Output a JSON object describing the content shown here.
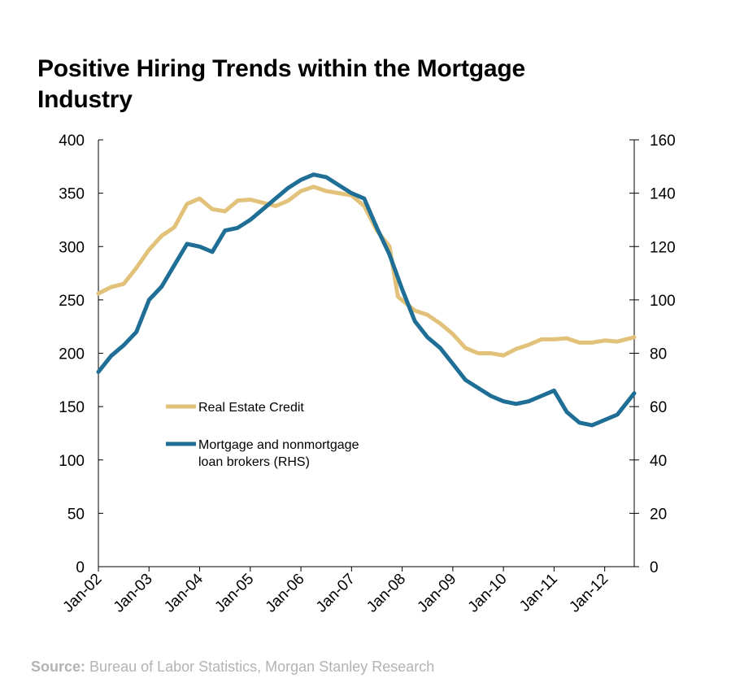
{
  "title": "Positive Hiring Trends within the Mortgage Industry",
  "source": {
    "label": "Source:",
    "text": "Bureau of Labor Statistics, Morgan Stanley Research"
  },
  "colors": {
    "real_estate": "#e2c27a",
    "brokers": "#1f6e96"
  },
  "chart_data": {
    "type": "line",
    "title": "Positive Hiring Trends within the Mortgage Industry",
    "x_ticks": [
      "Jan-02",
      "Jan-03",
      "Jan-04",
      "Jan-05",
      "Jan-06",
      "Jan-07",
      "Jan-08",
      "Jan-09",
      "Jan-10",
      "Jan-11",
      "Jan-12"
    ],
    "x_range": [
      "2002-01",
      "2012-08"
    ],
    "left_axis": {
      "ylim": [
        0,
        400
      ],
      "ticks": [
        0,
        50,
        100,
        150,
        200,
        250,
        300,
        350,
        400
      ]
    },
    "right_axis": {
      "ylim": [
        0,
        160
      ],
      "ticks": [
        0,
        20,
        40,
        60,
        80,
        100,
        120,
        140,
        160
      ]
    },
    "legend": {
      "placement": "lower-left"
    },
    "series": [
      {
        "name": "Real Estate Credit",
        "axis": "left",
        "color": "#e2c27a",
        "points": [
          [
            "2002-01",
            256
          ],
          [
            "2002-04",
            262
          ],
          [
            "2002-07",
            265
          ],
          [
            "2002-10",
            280
          ],
          [
            "2003-01",
            297
          ],
          [
            "2003-04",
            310
          ],
          [
            "2003-07",
            318
          ],
          [
            "2003-10",
            340
          ],
          [
            "2004-01",
            345
          ],
          [
            "2004-04",
            335
          ],
          [
            "2004-07",
            333
          ],
          [
            "2004-10",
            343
          ],
          [
            "2005-01",
            344
          ],
          [
            "2005-04",
            341
          ],
          [
            "2005-07",
            338
          ],
          [
            "2005-10",
            343
          ],
          [
            "2006-01",
            352
          ],
          [
            "2006-04",
            356
          ],
          [
            "2006-07",
            352
          ],
          [
            "2006-10",
            350
          ],
          [
            "2007-01",
            348
          ],
          [
            "2007-04",
            338
          ],
          [
            "2007-07",
            315
          ],
          [
            "2007-10",
            300
          ],
          [
            "2007-12",
            253
          ],
          [
            "2008-04",
            240
          ],
          [
            "2008-07",
            236
          ],
          [
            "2008-10",
            228
          ],
          [
            "2009-01",
            218
          ],
          [
            "2009-04",
            205
          ],
          [
            "2009-07",
            200
          ],
          [
            "2009-10",
            200
          ],
          [
            "2010-01",
            198
          ],
          [
            "2010-04",
            204
          ],
          [
            "2010-07",
            208
          ],
          [
            "2010-10",
            213
          ],
          [
            "2011-01",
            213
          ],
          [
            "2011-04",
            214
          ],
          [
            "2011-07",
            210
          ],
          [
            "2011-10",
            210
          ],
          [
            "2012-01",
            212
          ],
          [
            "2012-04",
            211
          ],
          [
            "2012-08",
            215
          ]
        ]
      },
      {
        "name": "Mortgage and nonmortgage loan brokers (RHS)",
        "axis": "right",
        "color": "#1f6e96",
        "points": [
          [
            "2002-01",
            73
          ],
          [
            "2002-04",
            79
          ],
          [
            "2002-07",
            83
          ],
          [
            "2002-10",
            88
          ],
          [
            "2003-01",
            100
          ],
          [
            "2003-04",
            105
          ],
          [
            "2003-07",
            113
          ],
          [
            "2003-10",
            121
          ],
          [
            "2004-01",
            120
          ],
          [
            "2004-04",
            118
          ],
          [
            "2004-07",
            126
          ],
          [
            "2004-10",
            127
          ],
          [
            "2005-01",
            130
          ],
          [
            "2005-04",
            134
          ],
          [
            "2005-07",
            138
          ],
          [
            "2005-10",
            142
          ],
          [
            "2006-01",
            145
          ],
          [
            "2006-04",
            147
          ],
          [
            "2006-07",
            146
          ],
          [
            "2006-10",
            143
          ],
          [
            "2007-01",
            140
          ],
          [
            "2007-04",
            138
          ],
          [
            "2007-07",
            127
          ],
          [
            "2007-10",
            117
          ],
          [
            "2008-01",
            104
          ],
          [
            "2008-04",
            92
          ],
          [
            "2008-07",
            86
          ],
          [
            "2008-10",
            82
          ],
          [
            "2009-01",
            76
          ],
          [
            "2009-04",
            70
          ],
          [
            "2009-07",
            67
          ],
          [
            "2009-10",
            64
          ],
          [
            "2010-01",
            62
          ],
          [
            "2010-04",
            61
          ],
          [
            "2010-07",
            62
          ],
          [
            "2010-10",
            64
          ],
          [
            "2011-01",
            66
          ],
          [
            "2011-04",
            58
          ],
          [
            "2011-07",
            54
          ],
          [
            "2011-10",
            53
          ],
          [
            "2012-01",
            55
          ],
          [
            "2012-04",
            57
          ],
          [
            "2012-08",
            65
          ]
        ]
      }
    ]
  },
  "legend": {
    "items": [
      {
        "lines": [
          "Real Estate Credit"
        ]
      },
      {
        "lines": [
          "Mortgage and nonmortgage",
          "loan brokers (RHS)"
        ]
      }
    ]
  }
}
